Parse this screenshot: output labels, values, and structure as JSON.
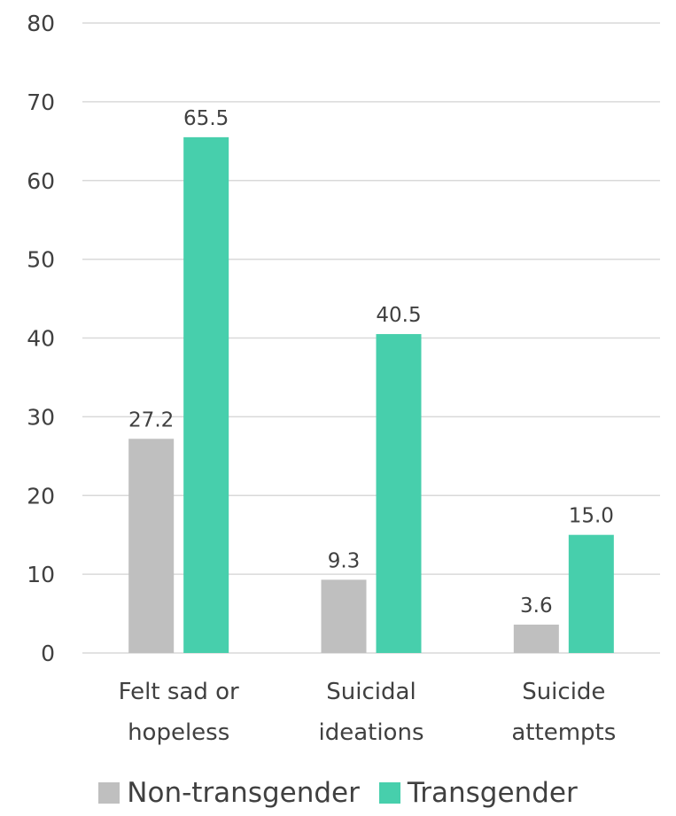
{
  "chart_data": {
    "type": "bar",
    "categories": [
      [
        "Felt sad or",
        "hopeless"
      ],
      [
        "Suicidal",
        "ideations"
      ],
      [
        "Suicide",
        "attempts"
      ]
    ],
    "series": [
      {
        "name": "Non-transgender",
        "color": "#bfbfbf",
        "values": [
          27.2,
          9.3,
          3.6
        ],
        "labels": [
          "27.2",
          "9.3",
          "3.6"
        ]
      },
      {
        "name": "Transgender",
        "color": "#47cfac",
        "values": [
          65.5,
          40.5,
          15.0
        ],
        "labels": [
          "65.5",
          "40.5",
          "15.0"
        ]
      }
    ],
    "ylim": [
      0,
      80
    ],
    "yticks": [
      0,
      10,
      20,
      30,
      40,
      50,
      60,
      70,
      80
    ],
    "grid": true,
    "legend_position": "bottom"
  }
}
